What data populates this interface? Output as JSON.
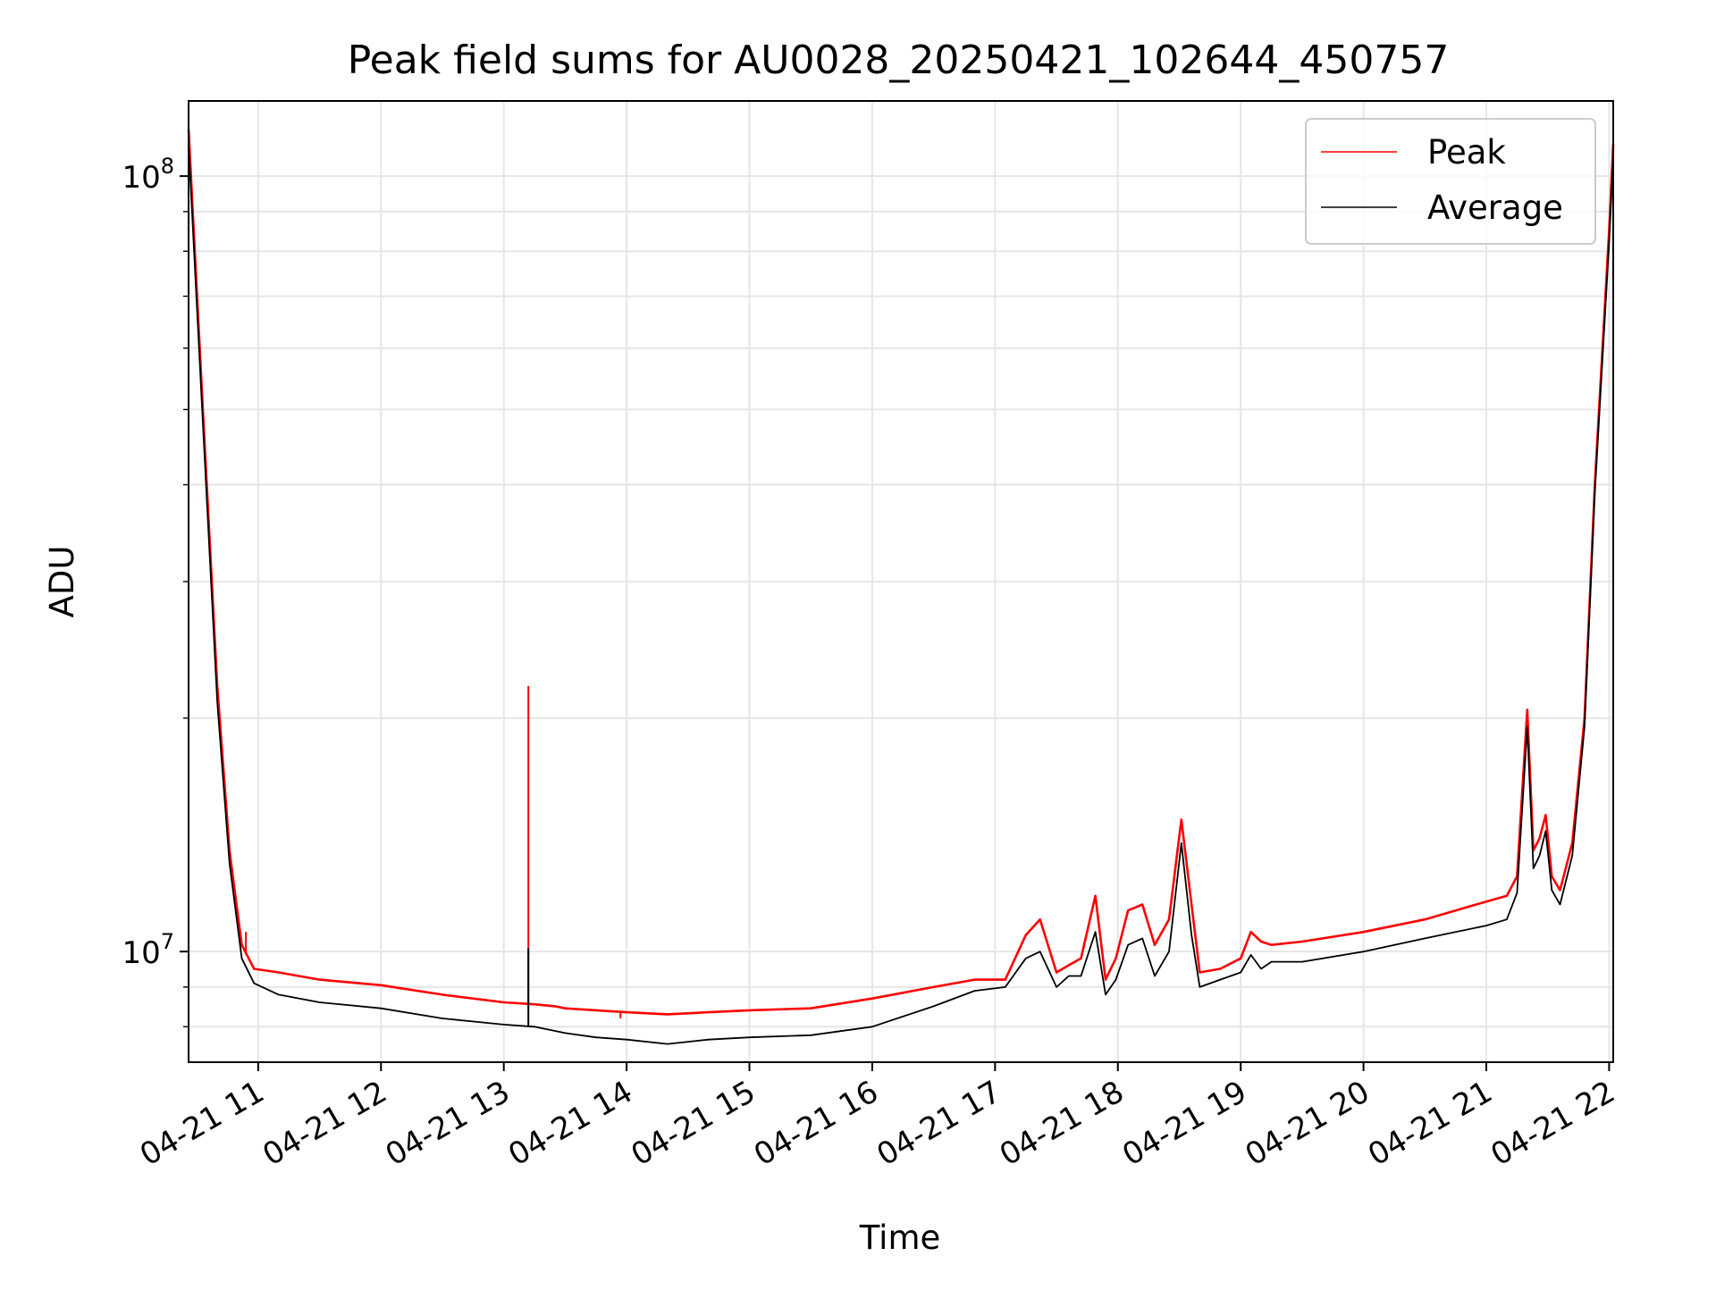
{
  "chart_data": {
    "type": "line",
    "title": "Peak field sums for AU0028_20250421_102644_450757",
    "xlabel": "Time",
    "ylabel": "ADU",
    "xscale": "time",
    "yscale": "log",
    "xlim": [
      "2025-04-21 10:26",
      "2025-04-21 22:02"
    ],
    "ylim": [
      7200000,
      125000000
    ],
    "x_ticks": [
      {
        "value": "2025-04-21 11:00",
        "label": "04-21 11"
      },
      {
        "value": "2025-04-21 12:00",
        "label": "04-21 12"
      },
      {
        "value": "2025-04-21 13:00",
        "label": "04-21 13"
      },
      {
        "value": "2025-04-21 14:00",
        "label": "04-21 14"
      },
      {
        "value": "2025-04-21 15:00",
        "label": "04-21 15"
      },
      {
        "value": "2025-04-21 16:00",
        "label": "04-21 16"
      },
      {
        "value": "2025-04-21 17:00",
        "label": "04-21 17"
      },
      {
        "value": "2025-04-21 18:00",
        "label": "04-21 18"
      },
      {
        "value": "2025-04-21 19:00",
        "label": "04-21 19"
      },
      {
        "value": "2025-04-21 20:00",
        "label": "04-21 20"
      },
      {
        "value": "2025-04-21 21:00",
        "label": "04-21 21"
      },
      {
        "value": "2025-04-21 22:00",
        "label": "04-21 22"
      }
    ],
    "y_ticks": [
      {
        "value": 10000000,
        "base": "10",
        "exp": "7"
      },
      {
        "value": 100000000,
        "base": "10",
        "exp": "8"
      }
    ],
    "grid": true,
    "legend_position": "top-right",
    "series": [
      {
        "name": "Peak",
        "color": "#ff0000",
        "points": [
          [
            "2025-04-21 10:26",
            115000000
          ],
          [
            "2025-04-21 10:33",
            50000000
          ],
          [
            "2025-04-21 10:40",
            22000000
          ],
          [
            "2025-04-21 10:46",
            13500000
          ],
          [
            "2025-04-21 10:52",
            10200000
          ],
          [
            "2025-04-21 10:58",
            9500000
          ],
          [
            "2025-04-21 11:10",
            9400000
          ],
          [
            "2025-04-21 11:30",
            9200000
          ],
          [
            "2025-04-21 12:00",
            9050000
          ],
          [
            "2025-04-21 12:30",
            8800000
          ],
          [
            "2025-04-21 13:00",
            8600000
          ],
          [
            "2025-04-21 13:15",
            8550000
          ],
          [
            "2025-04-21 13:25",
            8500000
          ],
          [
            "2025-04-21 13:30",
            8450000
          ],
          [
            "2025-04-21 13:45",
            8400000
          ],
          [
            "2025-04-21 14:00",
            8350000
          ],
          [
            "2025-04-21 14:20",
            8300000
          ],
          [
            "2025-04-21 14:40",
            8350000
          ],
          [
            "2025-04-21 15:00",
            8400000
          ],
          [
            "2025-04-21 15:30",
            8450000
          ],
          [
            "2025-04-21 16:00",
            8700000
          ],
          [
            "2025-04-21 16:30",
            9000000
          ],
          [
            "2025-04-21 16:50",
            9200000
          ],
          [
            "2025-04-21 17:05",
            9200000
          ],
          [
            "2025-04-21 17:15",
            10500000
          ],
          [
            "2025-04-21 17:22",
            11000000
          ],
          [
            "2025-04-21 17:30",
            9400000
          ],
          [
            "2025-04-21 17:36",
            9600000
          ],
          [
            "2025-04-21 17:42",
            9800000
          ],
          [
            "2025-04-21 17:49",
            11800000
          ],
          [
            "2025-04-21 17:54",
            9200000
          ],
          [
            "2025-04-21 17:59",
            9800000
          ],
          [
            "2025-04-21 18:05",
            11300000
          ],
          [
            "2025-04-21 18:12",
            11500000
          ],
          [
            "2025-04-21 18:18",
            10200000
          ],
          [
            "2025-04-21 18:25",
            11000000
          ],
          [
            "2025-04-21 18:31",
            14800000
          ],
          [
            "2025-04-21 18:36",
            11500000
          ],
          [
            "2025-04-21 18:40",
            9400000
          ],
          [
            "2025-04-21 18:50",
            9500000
          ],
          [
            "2025-04-21 19:00",
            9800000
          ],
          [
            "2025-04-21 19:05",
            10600000
          ],
          [
            "2025-04-21 19:10",
            10300000
          ],
          [
            "2025-04-21 19:15",
            10200000
          ],
          [
            "2025-04-21 19:30",
            10300000
          ],
          [
            "2025-04-21 20:00",
            10600000
          ],
          [
            "2025-04-21 20:30",
            11000000
          ],
          [
            "2025-04-21 21:00",
            11600000
          ],
          [
            "2025-04-21 21:10",
            11800000
          ],
          [
            "2025-04-21 21:15",
            12500000
          ],
          [
            "2025-04-21 21:20",
            20500000
          ],
          [
            "2025-04-21 21:23",
            13500000
          ],
          [
            "2025-04-21 21:26",
            14000000
          ],
          [
            "2025-04-21 21:29",
            15000000
          ],
          [
            "2025-04-21 21:32",
            12500000
          ],
          [
            "2025-04-21 21:36",
            12000000
          ],
          [
            "2025-04-21 21:42",
            13800000
          ],
          [
            "2025-04-21 21:48",
            20000000
          ],
          [
            "2025-04-21 21:53",
            40000000
          ],
          [
            "2025-04-21 22:00",
            85000000
          ],
          [
            "2025-04-21 22:02",
            110000000
          ]
        ]
      },
      {
        "name": "Average",
        "color": "#000000",
        "points": [
          [
            "2025-04-21 10:26",
            110000000
          ],
          [
            "2025-04-21 10:33",
            48000000
          ],
          [
            "2025-04-21 10:40",
            21000000
          ],
          [
            "2025-04-21 10:46",
            13000000
          ],
          [
            "2025-04-21 10:52",
            9800000
          ],
          [
            "2025-04-21 10:58",
            9100000
          ],
          [
            "2025-04-21 11:10",
            8800000
          ],
          [
            "2025-04-21 11:30",
            8600000
          ],
          [
            "2025-04-21 12:00",
            8450000
          ],
          [
            "2025-04-21 12:30",
            8200000
          ],
          [
            "2025-04-21 13:00",
            8050000
          ],
          [
            "2025-04-21 13:15",
            8000000
          ],
          [
            "2025-04-21 13:25",
            7900000
          ],
          [
            "2025-04-21 13:30",
            7850000
          ],
          [
            "2025-04-21 13:45",
            7750000
          ],
          [
            "2025-04-21 14:00",
            7700000
          ],
          [
            "2025-04-21 14:20",
            7600000
          ],
          [
            "2025-04-21 14:40",
            7700000
          ],
          [
            "2025-04-21 15:00",
            7750000
          ],
          [
            "2025-04-21 15:30",
            7800000
          ],
          [
            "2025-04-21 16:00",
            8000000
          ],
          [
            "2025-04-21 16:30",
            8500000
          ],
          [
            "2025-04-21 16:50",
            8900000
          ],
          [
            "2025-04-21 17:05",
            9000000
          ],
          [
            "2025-04-21 17:15",
            9800000
          ],
          [
            "2025-04-21 17:22",
            10000000
          ],
          [
            "2025-04-21 17:30",
            9000000
          ],
          [
            "2025-04-21 17:36",
            9300000
          ],
          [
            "2025-04-21 17:42",
            9300000
          ],
          [
            "2025-04-21 17:49",
            10600000
          ],
          [
            "2025-04-21 17:54",
            8800000
          ],
          [
            "2025-04-21 17:59",
            9200000
          ],
          [
            "2025-04-21 18:05",
            10200000
          ],
          [
            "2025-04-21 18:12",
            10400000
          ],
          [
            "2025-04-21 18:18",
            9300000
          ],
          [
            "2025-04-21 18:25",
            10000000
          ],
          [
            "2025-04-21 18:31",
            13800000
          ],
          [
            "2025-04-21 18:36",
            10500000
          ],
          [
            "2025-04-21 18:40",
            9000000
          ],
          [
            "2025-04-21 18:50",
            9200000
          ],
          [
            "2025-04-21 19:00",
            9400000
          ],
          [
            "2025-04-21 19:05",
            9900000
          ],
          [
            "2025-04-21 19:10",
            9500000
          ],
          [
            "2025-04-21 19:15",
            9700000
          ],
          [
            "2025-04-21 19:30",
            9700000
          ],
          [
            "2025-04-21 20:00",
            10000000
          ],
          [
            "2025-04-21 20:30",
            10400000
          ],
          [
            "2025-04-21 21:00",
            10800000
          ],
          [
            "2025-04-21 21:10",
            11000000
          ],
          [
            "2025-04-21 21:15",
            11900000
          ],
          [
            "2025-04-21 21:20",
            19500000
          ],
          [
            "2025-04-21 21:23",
            12800000
          ],
          [
            "2025-04-21 21:26",
            13300000
          ],
          [
            "2025-04-21 21:29",
            14300000
          ],
          [
            "2025-04-21 21:32",
            12000000
          ],
          [
            "2025-04-21 21:36",
            11500000
          ],
          [
            "2025-04-21 21:42",
            13300000
          ],
          [
            "2025-04-21 21:48",
            19500000
          ],
          [
            "2025-04-21 21:53",
            39000000
          ],
          [
            "2025-04-21 22:00",
            82000000
          ],
          [
            "2025-04-21 22:02",
            106000000
          ]
        ]
      }
    ],
    "peak_spikes": [
      [
        "2025-04-21 13:12",
        22000000
      ],
      [
        "2025-04-21 10:54",
        10600000
      ],
      [
        "2025-04-21 13:57",
        8200000
      ]
    ],
    "average_spikes": [
      [
        "2025-04-21 13:12",
        10100000
      ]
    ]
  }
}
